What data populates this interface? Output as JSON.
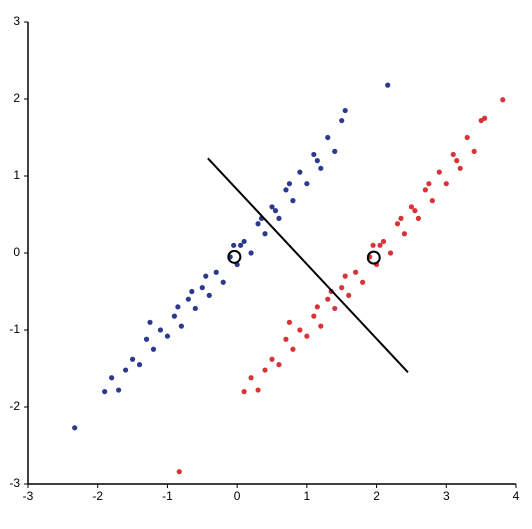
{
  "chart_data": {
    "type": "scatter",
    "xlim": [
      -3,
      4
    ],
    "ylim": [
      -3,
      3
    ],
    "xticks": [
      -3,
      -2,
      -1,
      0,
      1,
      2,
      3,
      4
    ],
    "yticks": [
      -3,
      -2,
      -1,
      0,
      1,
      2,
      3
    ],
    "series": [
      {
        "color": "#2b3a8c",
        "x": [
          -2.33,
          -1.9,
          -1.8,
          -1.7,
          -1.6,
          -1.5,
          -1.4,
          -1.3,
          -1.2,
          -1.1,
          -1.0,
          -0.9,
          -0.8,
          -0.7,
          -0.6,
          -0.5,
          -0.4,
          -0.3,
          -0.2,
          -0.1,
          0.0,
          0.1,
          0.2,
          0.3,
          0.4,
          0.5,
          0.6,
          0.7,
          0.8,
          0.9,
          1.0,
          1.1,
          1.2,
          1.3,
          1.4,
          1.5,
          1.55,
          2.16,
          -1.25,
          -0.85,
          -0.45,
          -0.05,
          0.35,
          0.75,
          1.15,
          -0.65,
          0.05,
          0.55
        ],
        "values": [
          -2.27,
          -1.8,
          -1.62,
          -1.78,
          -1.52,
          -1.38,
          -1.45,
          -1.12,
          -1.25,
          -1.0,
          -1.08,
          -0.82,
          -0.95,
          -0.6,
          -0.72,
          -0.45,
          -0.55,
          -0.25,
          -0.38,
          -0.05,
          -0.15,
          0.15,
          0.0,
          0.38,
          0.25,
          0.6,
          0.45,
          0.82,
          0.68,
          1.05,
          0.9,
          1.28,
          1.1,
          1.5,
          1.32,
          1.72,
          1.85,
          2.18,
          -0.9,
          -0.7,
          -0.3,
          0.1,
          0.45,
          0.9,
          1.2,
          -0.5,
          0.1,
          0.55
        ]
      },
      {
        "color": "#d93338",
        "x": [
          -0.83,
          0.1,
          0.2,
          0.3,
          0.4,
          0.5,
          0.6,
          0.7,
          0.8,
          0.9,
          1.0,
          1.1,
          1.2,
          1.3,
          1.4,
          1.5,
          1.6,
          1.7,
          1.8,
          1.9,
          2.0,
          2.1,
          2.2,
          2.3,
          2.4,
          2.5,
          2.6,
          2.7,
          2.8,
          2.9,
          3.0,
          3.1,
          3.2,
          3.3,
          3.4,
          3.5,
          3.55,
          3.81,
          0.75,
          1.15,
          1.55,
          1.95,
          2.35,
          2.75,
          3.15,
          1.35,
          2.05,
          2.55
        ],
        "values": [
          -2.84,
          -1.8,
          -1.62,
          -1.78,
          -1.52,
          -1.38,
          -1.45,
          -1.12,
          -1.25,
          -1.0,
          -1.08,
          -0.82,
          -0.95,
          -0.6,
          -0.72,
          -0.45,
          -0.55,
          -0.25,
          -0.38,
          -0.05,
          -0.15,
          0.15,
          0.0,
          0.38,
          0.25,
          0.6,
          0.45,
          0.82,
          0.68,
          1.05,
          0.9,
          1.28,
          1.1,
          1.5,
          1.32,
          1.72,
          1.75,
          1.99,
          -0.9,
          -0.7,
          -0.3,
          0.1,
          0.45,
          0.9,
          1.2,
          -0.5,
          0.1,
          0.55
        ]
      }
    ],
    "line": {
      "color": "#000000",
      "x": [
        -0.42,
        2.45
      ],
      "values": [
        1.23,
        -1.55
      ]
    },
    "centers": {
      "color": "#000000",
      "x": [
        -0.04,
        1.96
      ],
      "values": [
        -0.05,
        -0.06
      ]
    }
  }
}
